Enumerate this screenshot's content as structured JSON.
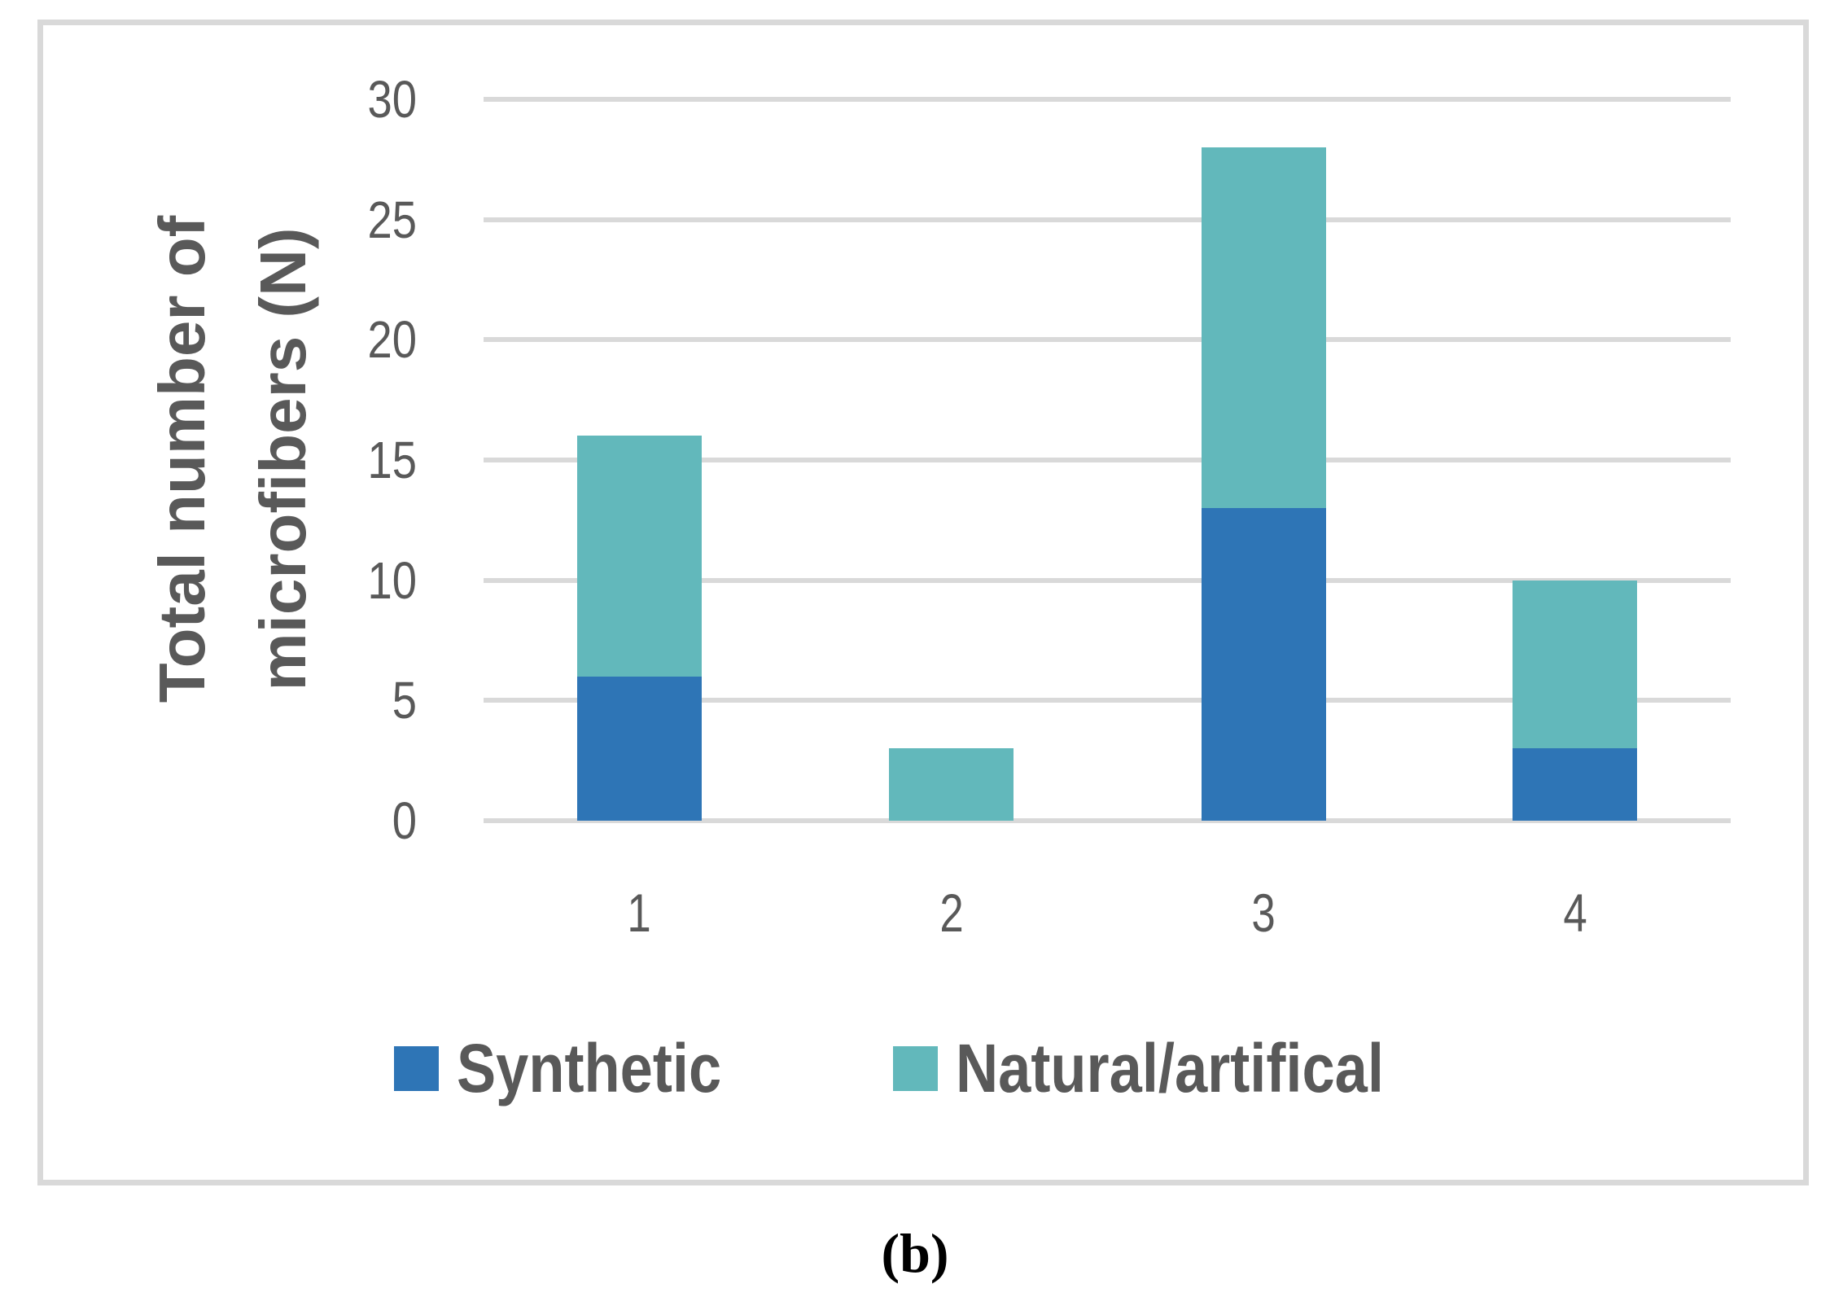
{
  "chart_data": {
    "type": "bar",
    "stacked": true,
    "title": "",
    "xlabel": "",
    "ylabel": "Total number of microfibers (N)",
    "ylabel_lines": [
      "Total number of",
      "microfibers (N)"
    ],
    "categories": [
      "1",
      "2",
      "3",
      "4"
    ],
    "series": [
      {
        "name": "Synthetic",
        "color": "#2e75b6",
        "values": [
          6,
          0,
          13,
          3
        ]
      },
      {
        "name": "Natural/artifical",
        "color": "#62b8bb",
        "values": [
          10,
          3,
          15,
          7
        ]
      }
    ],
    "totals": [
      16,
      3,
      28,
      10
    ],
    "ylim": [
      0,
      30
    ],
    "yticks": [
      0,
      5,
      10,
      15,
      20,
      25,
      30
    ],
    "grid": true,
    "legend_position": "bottom",
    "caption": "(b)"
  },
  "colors": {
    "synthetic": "#2e75b6",
    "natural": "#62b8bb",
    "grid": "#d9d9d9",
    "text": "#595959",
    "frame": "#d9d9d9"
  },
  "yaxis": {
    "title_line1": "Total number of",
    "title_line2": "microfibers (N)",
    "ticks": [
      "0",
      "5",
      "10",
      "15",
      "20",
      "25",
      "30"
    ]
  },
  "xaxis": {
    "ticks": [
      "1",
      "2",
      "3",
      "4"
    ]
  },
  "legend": {
    "items": [
      {
        "label": "Synthetic",
        "color": "#2e75b6"
      },
      {
        "label": "Natural/artifical",
        "color": "#62b8bb"
      }
    ]
  },
  "caption": "(b)"
}
